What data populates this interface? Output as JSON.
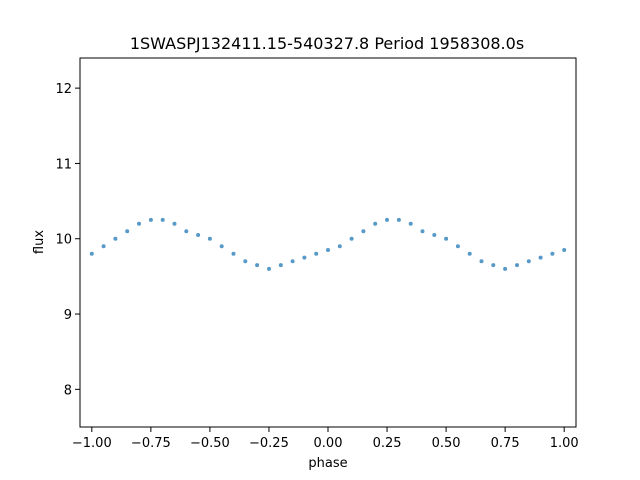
{
  "chart_data": {
    "type": "scatter",
    "title": "1SWASPJ132411.15-540327.8 Period 1958308.0s",
    "xlabel": "phase",
    "ylabel": "flux",
    "xlim": [
      -1.05,
      1.05
    ],
    "ylim": [
      7.5,
      12.4
    ],
    "xticks": [
      -1.0,
      -0.75,
      -0.5,
      -0.25,
      0.0,
      0.25,
      0.5,
      0.75,
      1.0
    ],
    "xtick_labels": [
      "−1.00",
      "−0.75",
      "−0.50",
      "−0.25",
      "0.00",
      "0.25",
      "0.50",
      "0.75",
      "1.00"
    ],
    "yticks": [
      8,
      9,
      10,
      11,
      12
    ],
    "ytick_labels": [
      "8",
      "9",
      "10",
      "11",
      "12"
    ],
    "grid": false,
    "marker_color": "#1f77b4",
    "series": [
      {
        "x": [
          -1.0,
          -0.95,
          -0.9,
          -0.85,
          -0.8,
          -0.75,
          -0.7,
          -0.65,
          -0.6,
          -0.55,
          -0.5,
          -0.45,
          -0.4,
          -0.35,
          -0.3,
          -0.25,
          -0.2,
          -0.15,
          -0.1,
          -0.05,
          0.0,
          0.05,
          0.1,
          0.15,
          0.2,
          0.25,
          0.3,
          0.35,
          0.4,
          0.45,
          0.5,
          0.55,
          0.6,
          0.65,
          0.7,
          0.75,
          0.8,
          0.85,
          0.9,
          0.95,
          1.0
        ],
        "y": [
          9.8,
          9.9,
          10.0,
          10.1,
          10.2,
          10.25,
          10.25,
          10.2,
          10.1,
          10.05,
          10.0,
          9.9,
          9.8,
          9.7,
          9.65,
          9.6,
          9.65,
          9.7,
          9.75,
          9.8,
          9.85,
          9.9,
          10.0,
          10.1,
          10.2,
          10.25,
          10.25,
          10.2,
          10.1,
          10.05,
          10.0,
          9.9,
          9.8,
          9.7,
          9.65,
          9.6,
          9.65,
          9.7,
          9.75,
          9.8,
          9.85
        ]
      }
    ]
  }
}
